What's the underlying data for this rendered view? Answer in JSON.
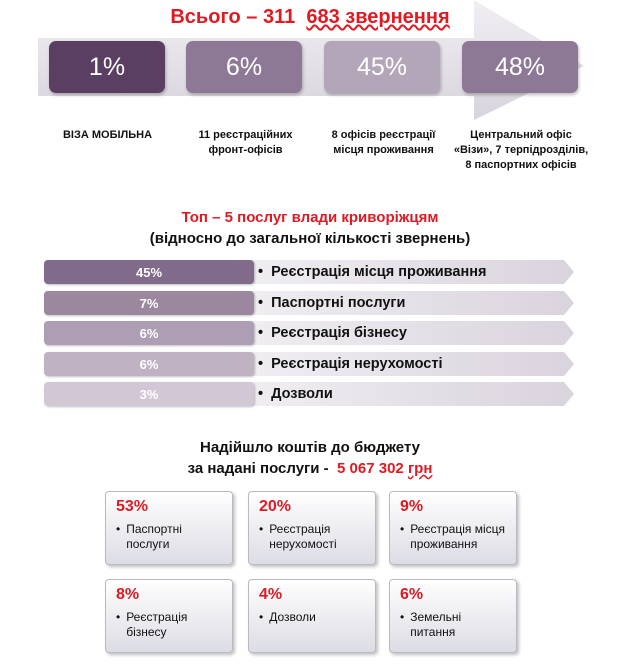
{
  "header": {
    "title_prefix": "Всього – 311",
    "title_number": "683 звернення",
    "boxes": [
      {
        "value": "1%",
        "color": "#5b3f63"
      },
      {
        "value": "6%",
        "color": "#8d7896"
      },
      {
        "value": "45%",
        "color": "#b4a6b9"
      },
      {
        "value": "48%",
        "color": "#8d7896"
      }
    ],
    "captions": [
      "ВІЗА МОБІЛЬНА",
      "11 реєстраційних фронт-офісів",
      "8 офісів реєстрації місця проживання",
      "Центральний офіс «Візи», 7 терпідрозділів, 8 паспортних офісів"
    ]
  },
  "top5": {
    "title": "Топ – 5 послуг влади криворіжцям",
    "subtitle": "(відносно до загальної кількості звернень)",
    "items": [
      {
        "pct": "45%",
        "label": "Реєстрація місця проживання",
        "color": "#816b8b"
      },
      {
        "pct": "7%",
        "label": "Паспортні послуги",
        "color": "#9b889f"
      },
      {
        "pct": "6%",
        "label": "Реєстрація бізнесу",
        "color": "#ae9eb3"
      },
      {
        "pct": "6%",
        "label": "Реєстрація нерухомості",
        "color": "#bfb2c3"
      },
      {
        "pct": "3%",
        "label": "Дозволи",
        "color": "#d2c8d5"
      }
    ]
  },
  "budget": {
    "title": "Надійшло коштів до бюджету",
    "subtitle_prefix": "за надані послуги -",
    "amount": "5 067 302",
    "currency": "грн",
    "items": [
      {
        "pct": "53%",
        "label": "Паспортні послуги"
      },
      {
        "pct": "20%",
        "label": "Реєстрація нерухомості"
      },
      {
        "pct": "9%",
        "label": "Реєстрація місця проживання"
      },
      {
        "pct": "8%",
        "label": "Реєстрація бізнесу"
      },
      {
        "pct": "4%",
        "label": "Дозволи"
      },
      {
        "pct": "6%",
        "label": "Земельні питання"
      }
    ]
  }
}
